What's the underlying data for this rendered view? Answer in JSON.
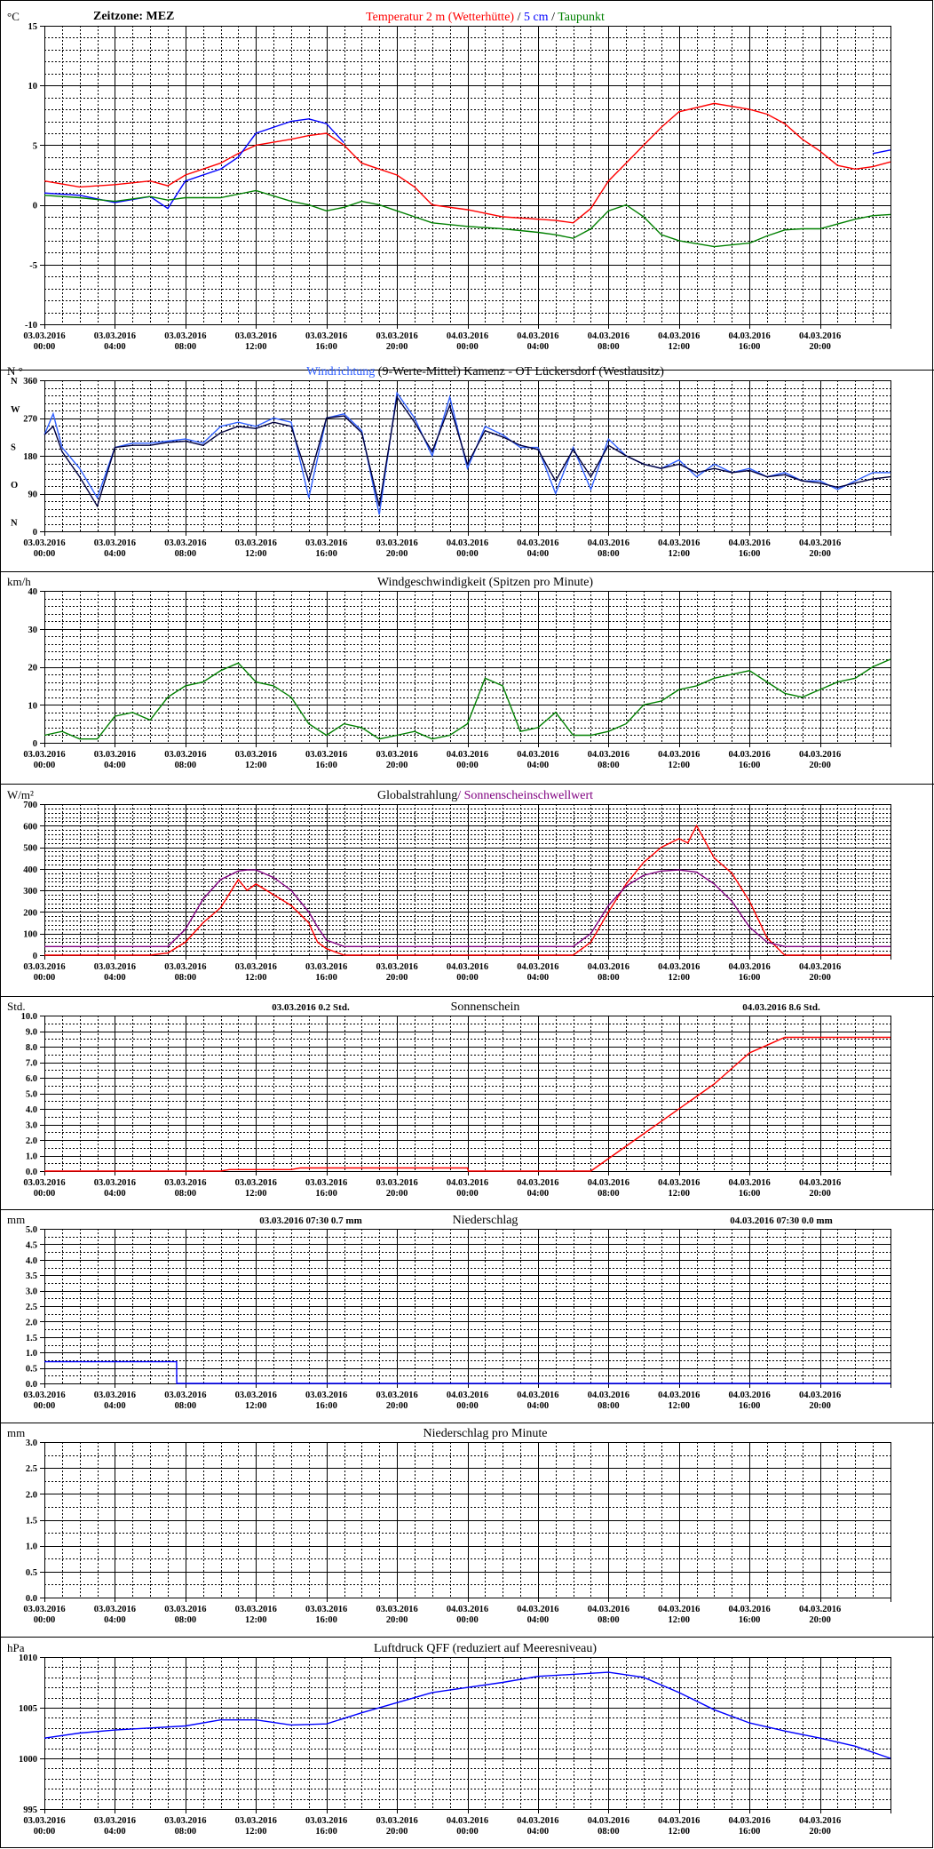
{
  "x_axis": {
    "tick_dates": [
      "03.03.2016",
      "03.03.2016",
      "03.03.2016",
      "03.03.2016",
      "03.03.2016",
      "03.03.2016",
      "04.03.2016",
      "04.03.2016",
      "04.03.2016",
      "04.03.2016",
      "04.03.2016",
      "04.03.2016"
    ],
    "tick_times": [
      "00:00",
      "04:00",
      "08:00",
      "12:00",
      "16:00",
      "20:00",
      "00:00",
      "04:00",
      "08:00",
      "12:00",
      "16:00",
      "20:00"
    ],
    "start": "2016-03-03 00:00",
    "end": "2016-03-05 00:00",
    "timezone_label": "Zeitzone: MEZ"
  },
  "chart_data": [
    {
      "id": "temperature",
      "type": "line",
      "unit_label": "°C",
      "title_parts": [
        {
          "text": "Temperatur 2 m (Wetterhütte)",
          "color": "#ff0000"
        },
        {
          "text": "  /  ",
          "color": "#000000"
        },
        {
          "text": "5 cm",
          "color": "#0000ff"
        },
        {
          "text": " / ",
          "color": "#000000"
        },
        {
          "text": "Taupunkt",
          "color": "#008000"
        }
      ],
      "ylim": [
        -10,
        15
      ],
      "yticks": [
        -10,
        -5,
        0,
        5,
        10,
        15
      ],
      "ytick_labels": [
        "-10",
        "-5",
        "0",
        "5",
        "10",
        "15"
      ],
      "x_hours": [
        0,
        2,
        4,
        6,
        7,
        8,
        10,
        11,
        12,
        14,
        15,
        16,
        17,
        18,
        19,
        20,
        21,
        22,
        24,
        26,
        28,
        29,
        30,
        31,
        32,
        33,
        34,
        35,
        36,
        38,
        40,
        41,
        42,
        43,
        44,
        45,
        46,
        47,
        48
      ],
      "series": [
        {
          "name": "Temperatur 2 m (Wetterhütte)",
          "color": "#ff0000",
          "values": [
            2.0,
            1.5,
            1.7,
            2.0,
            1.6,
            2.5,
            3.5,
            4.3,
            5.0,
            5.5,
            5.8,
            6.0,
            5.0,
            3.5,
            3.0,
            2.5,
            1.5,
            0.0,
            -0.4,
            -1.0,
            -1.2,
            -1.3,
            -1.5,
            -0.3,
            2.0,
            3.5,
            5.0,
            6.5,
            7.8,
            8.5,
            8.0,
            7.6,
            6.8,
            5.5,
            4.5,
            3.3,
            3.0,
            3.2,
            3.6
          ]
        },
        {
          "name": "5 cm",
          "color": "#0000ff",
          "values": [
            1.0,
            0.8,
            0.2,
            0.7,
            -0.3,
            2.0,
            3.0,
            4.0,
            6.0,
            7.0,
            7.2,
            6.8,
            5.2,
            null,
            null,
            null,
            null,
            null,
            null,
            null,
            null,
            null,
            null,
            null,
            null,
            null,
            null,
            null,
            null,
            null,
            null,
            null,
            null,
            null,
            null,
            null,
            null,
            4.3,
            4.6
          ]
        },
        {
          "name": "Taupunkt",
          "color": "#008000",
          "values": [
            0.8,
            0.6,
            0.3,
            0.7,
            0.4,
            0.6,
            0.6,
            0.9,
            1.2,
            0.3,
            0.0,
            -0.5,
            -0.2,
            0.3,
            0.0,
            -0.5,
            -1.0,
            -1.5,
            -1.8,
            -2.0,
            -2.3,
            -2.5,
            -2.8,
            -2.0,
            -0.5,
            0.0,
            -1.0,
            -2.5,
            -3.0,
            -3.5,
            -3.2,
            -2.6,
            -2.1,
            -2.0,
            -2.0,
            -1.6,
            -1.2,
            -0.9,
            -0.8
          ]
        }
      ]
    },
    {
      "id": "wind_direction",
      "type": "line",
      "unit_label": "N °",
      "title_parts": [
        {
          "text": "Windrichtung",
          "color": "#3060ff"
        },
        {
          "text": " (9-Werte-Mittel)",
          "color": "#000000"
        },
        {
          "text": "          Kamenz - OT Lückersdorf (Westlausitz)",
          "color": "#000000"
        }
      ],
      "ylim": [
        0,
        360
      ],
      "yticks": [
        0,
        90,
        180,
        270,
        360
      ],
      "ytick_labels": [
        "0",
        "90",
        "180",
        "270",
        "360"
      ],
      "compass_labels": [
        {
          "text": "N",
          "value": 360
        },
        {
          "text": "W",
          "value": 292
        },
        {
          "text": "S",
          "value": 202
        },
        {
          "text": "O",
          "value": 112
        },
        {
          "text": "N",
          "value": 22
        }
      ],
      "x_hours": [
        0,
        0.5,
        1,
        2,
        3,
        4,
        5,
        6,
        7,
        8,
        9,
        10,
        11,
        12,
        13,
        14,
        15,
        16,
        17,
        18,
        19,
        20,
        21,
        22,
        23,
        24,
        25,
        26,
        27,
        28,
        29,
        30,
        31,
        32,
        33,
        34,
        35,
        36,
        37,
        38,
        39,
        40,
        41,
        42,
        43,
        44,
        45,
        46,
        47,
        48
      ],
      "series": [
        {
          "name": "Windrichtung",
          "color": "#3060ff",
          "values": [
            230,
            280,
            200,
            150,
            80,
            200,
            210,
            210,
            215,
            220,
            210,
            250,
            260,
            250,
            270,
            260,
            80,
            270,
            280,
            240,
            40,
            330,
            270,
            180,
            320,
            150,
            250,
            230,
            200,
            200,
            90,
            200,
            100,
            220,
            180,
            160,
            150,
            170,
            130,
            160,
            140,
            150,
            130,
            140,
            120,
            120,
            100,
            120,
            140,
            140
          ]
        },
        {
          "name": "9-Werte-Mittel",
          "color": "#000040",
          "values": [
            230,
            250,
            190,
            130,
            60,
            200,
            205,
            205,
            212,
            215,
            205,
            235,
            250,
            245,
            260,
            250,
            120,
            270,
            275,
            235,
            60,
            320,
            260,
            190,
            300,
            160,
            240,
            225,
            205,
            195,
            120,
            195,
            130,
            205,
            180,
            160,
            150,
            160,
            140,
            150,
            140,
            145,
            130,
            135,
            120,
            115,
            105,
            115,
            125,
            130
          ]
        }
      ]
    },
    {
      "id": "wind_speed",
      "type": "line",
      "unit_label": "km/h",
      "title_parts": [
        {
          "text": "Windgeschwindigkeit (Spitzen pro Minute)",
          "color": "#000000"
        }
      ],
      "ylim": [
        0,
        40
      ],
      "yticks": [
        0,
        10,
        20,
        30,
        40
      ],
      "ytick_labels": [
        "0",
        "10",
        "20",
        "30",
        "40"
      ],
      "x_hours": [
        0,
        1,
        2,
        3,
        4,
        5,
        6,
        7,
        8,
        9,
        10,
        11,
        12,
        13,
        14,
        15,
        16,
        17,
        18,
        19,
        20,
        21,
        22,
        23,
        24,
        25,
        26,
        27,
        28,
        29,
        30,
        31,
        32,
        33,
        34,
        35,
        36,
        37,
        38,
        39,
        40,
        41,
        42,
        43,
        44,
        45,
        46,
        47,
        48
      ],
      "series": [
        {
          "name": "Windgeschwindigkeit",
          "color": "#008000",
          "values": [
            2,
            3,
            1,
            1,
            7,
            8,
            6,
            12,
            15,
            16,
            19,
            21,
            16,
            15,
            12,
            5,
            2,
            5,
            4,
            1,
            2,
            3,
            1,
            2,
            5,
            17,
            15,
            3,
            4,
            8,
            2,
            2,
            3,
            5,
            10,
            11,
            14,
            15,
            17,
            18,
            19,
            16,
            13,
            12,
            14,
            16,
            17,
            20,
            22
          ]
        }
      ]
    },
    {
      "id": "global_radiation",
      "type": "line",
      "unit_label": "W/m²",
      "title_parts": [
        {
          "text": "Globalstrahlung",
          "color": "#000000"
        },
        {
          "text": "/ Sonnenscheinschwellwert",
          "color": "#800080"
        }
      ],
      "ylim": [
        0,
        700
      ],
      "yticks": [
        0,
        100,
        200,
        300,
        400,
        500,
        600,
        700
      ],
      "ytick_labels": [
        "0",
        "100",
        "200",
        "300",
        "400",
        "500",
        "600",
        "700"
      ],
      "x_hours": [
        0,
        6,
        7,
        8,
        9,
        10,
        11,
        11.5,
        12,
        13,
        14,
        15,
        15.5,
        16,
        17,
        24,
        30,
        31,
        32,
        33,
        34,
        35,
        36,
        36.5,
        37,
        38,
        39,
        40,
        41,
        42,
        48
      ],
      "series": [
        {
          "name": "Globalstrahlung",
          "color": "#ff0000",
          "values": [
            0,
            0,
            10,
            60,
            150,
            220,
            350,
            300,
            330,
            280,
            230,
            150,
            60,
            30,
            0,
            0,
            0,
            60,
            200,
            330,
            430,
            500,
            540,
            520,
            600,
            450,
            380,
            250,
            80,
            0,
            0
          ]
        },
        {
          "name": "Sonnenscheinschwellwert",
          "color": "#800080",
          "values": [
            40,
            40,
            40,
            120,
            260,
            350,
            390,
            395,
            395,
            360,
            300,
            200,
            130,
            70,
            40,
            40,
            40,
            100,
            230,
            320,
            370,
            390,
            395,
            390,
            385,
            330,
            250,
            130,
            60,
            40,
            40
          ]
        }
      ]
    },
    {
      "id": "sunshine",
      "type": "line",
      "unit_label": "Std.",
      "title_parts": [
        {
          "text": "Sonnenschein",
          "color": "#000000"
        }
      ],
      "header_left": {
        "date": "03.03.2016",
        "value": "0.2",
        "unit": "Std."
      },
      "header_right": {
        "date": "04.03.2016",
        "value": "8.6",
        "unit": "Std."
      },
      "ylim": [
        0,
        10
      ],
      "yticks": [
        0,
        1,
        2,
        3,
        4,
        5,
        6,
        7,
        8,
        9,
        10
      ],
      "ytick_labels": [
        "0.0",
        "1.0",
        "2.0",
        "3.0",
        "4.0",
        "5.0",
        "6.0",
        "7.0",
        "8.0",
        "9.0",
        "10.0"
      ],
      "x_hours": [
        0,
        10,
        10.5,
        14,
        14.5,
        24,
        24.05,
        31,
        34,
        37,
        38,
        39,
        40,
        41,
        42,
        48
      ],
      "series": [
        {
          "name": "Sonnenschein",
          "color": "#ff0000",
          "values": [
            0,
            0,
            0.1,
            0.1,
            0.2,
            0.2,
            0,
            0,
            2.4,
            4.8,
            5.6,
            6.6,
            7.6,
            8.1,
            8.6,
            8.6
          ]
        }
      ]
    },
    {
      "id": "precipitation",
      "type": "line",
      "unit_label": "mm",
      "title_parts": [
        {
          "text": "Niederschlag",
          "color": "#000000"
        }
      ],
      "header_left": {
        "date": "03.03.2016 07:30",
        "value": "0.7",
        "unit": "mm"
      },
      "header_right": {
        "date": "04.03.2016 07:30",
        "value": "0.0",
        "unit": "mm"
      },
      "ylim": [
        0,
        5
      ],
      "yticks": [
        0,
        0.5,
        1,
        1.5,
        2,
        2.5,
        3,
        3.5,
        4,
        4.5,
        5
      ],
      "ytick_labels": [
        "0.0",
        "0.5",
        "1.0",
        "1.5",
        "2.0",
        "2.5",
        "3.0",
        "3.5",
        "4.0",
        "4.5",
        "5.0"
      ],
      "x_hours": [
        0,
        7.5,
        7.51,
        48
      ],
      "series": [
        {
          "name": "Niederschlag",
          "color": "#0000ff",
          "values": [
            0.7,
            0.7,
            0,
            0
          ]
        }
      ]
    },
    {
      "id": "precipitation_per_minute",
      "type": "line",
      "unit_label": "mm",
      "title_parts": [
        {
          "text": "Niederschlag pro Minute",
          "color": "#000000"
        }
      ],
      "ylim": [
        0,
        3
      ],
      "yticks": [
        0,
        0.5,
        1,
        1.5,
        2,
        2.5,
        3
      ],
      "ytick_labels": [
        "0.0",
        "0.5",
        "1.0",
        "1.5",
        "2.0",
        "2.5",
        "3.0"
      ],
      "x_hours": [],
      "series": []
    },
    {
      "id": "pressure",
      "type": "line",
      "unit_label": "hPa",
      "title_parts": [
        {
          "text": "Luftdruck QFF (reduziert auf Meeresniveau)",
          "color": "#000000"
        }
      ],
      "ylim": [
        995,
        1010
      ],
      "yticks": [
        995,
        1000,
        1005,
        1010
      ],
      "ytick_labels": [
        "995",
        "1000",
        "1005",
        "1010"
      ],
      "x_hours": [
        0,
        2,
        4,
        6,
        8,
        10,
        12,
        14,
        16,
        18,
        20,
        22,
        24,
        26,
        28,
        30,
        32,
        34,
        36,
        38,
        40,
        42,
        44,
        46,
        48
      ],
      "series": [
        {
          "name": "Luftdruck QFF",
          "color": "#0000ff",
          "values": [
            1002.0,
            1002.5,
            1002.8,
            1003.0,
            1003.2,
            1003.8,
            1003.8,
            1003.3,
            1003.4,
            1004.5,
            1005.5,
            1006.5,
            1007.0,
            1007.5,
            1008.1,
            1008.3,
            1008.5,
            1008.0,
            1006.5,
            1004.8,
            1003.5,
            1002.7,
            1002.0,
            1001.2,
            1000.0
          ]
        }
      ]
    }
  ]
}
